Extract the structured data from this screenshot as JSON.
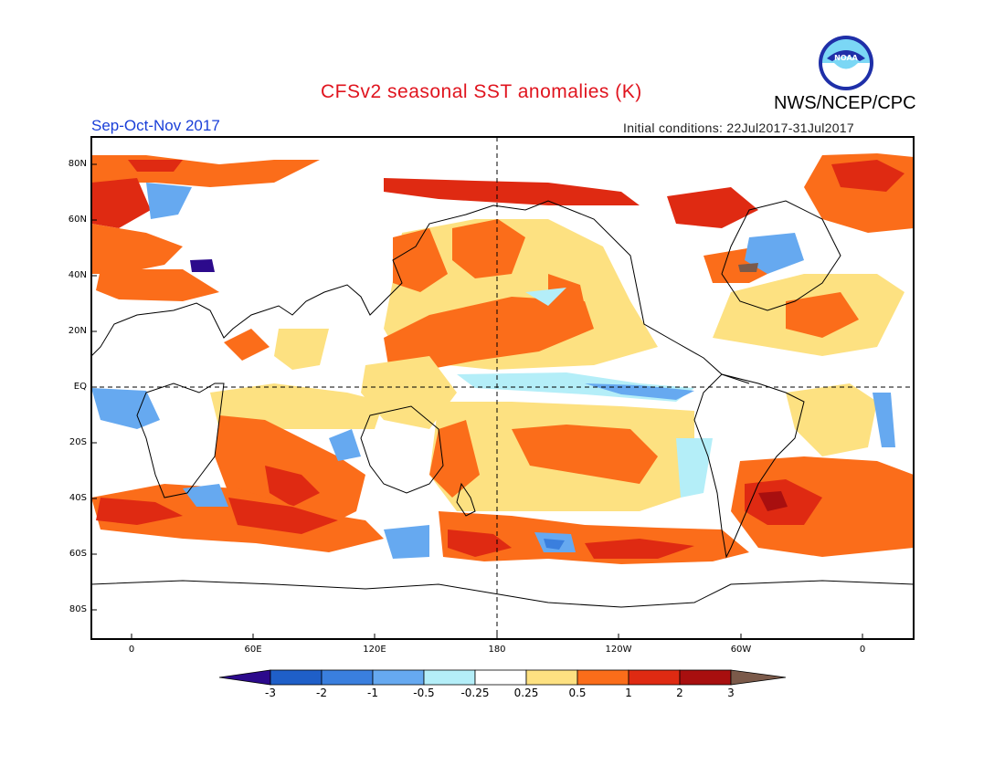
{
  "header": {
    "title": "CFSv2 seasonal SST anomalies (K)",
    "agency": "NWS/NCEP/CPC",
    "logo_text": "NOAA",
    "season": "Sep-Oct-Nov 2017",
    "initial_conditions": "Initial conditions: 22Jul2017-31Jul2017"
  },
  "map": {
    "projection": "equirectangular",
    "lat_labels": [
      "80N",
      "60N",
      "40N",
      "20N",
      "EQ",
      "20S",
      "40S",
      "60S",
      "80S"
    ],
    "lon_labels": [
      "0",
      "60E",
      "120E",
      "180",
      "120W",
      "60W",
      "0"
    ],
    "reference_lines": [
      "EQ",
      "180"
    ]
  },
  "legend": {
    "tick_labels": [
      "-3",
      "-2",
      "-1",
      "-0.5",
      "-0.25",
      "0.25",
      "0.5",
      "1",
      "2",
      "3"
    ],
    "bins": [
      {
        "range": "< -3",
        "color": "#2c0a8c"
      },
      {
        "range": "-3 to -2",
        "color": "#1f5fc8"
      },
      {
        "range": "-2 to -1",
        "color": "#3a7fde"
      },
      {
        "range": "-1 to -0.5",
        "color": "#66a9f0"
      },
      {
        "range": "-0.5 to -0.25",
        "color": "#b4eef8"
      },
      {
        "range": "-0.25 to 0.25",
        "color": "#ffffff"
      },
      {
        "range": "0.25 to 0.5",
        "color": "#fde181"
      },
      {
        "range": "0.5 to 1",
        "color": "#fb6d1a"
      },
      {
        "range": "1 to 2",
        "color": "#df2a12"
      },
      {
        "range": "2 to 3",
        "color": "#a80f0f"
      },
      {
        "range": "> 3",
        "color": "#7b5a4a"
      }
    ]
  }
}
